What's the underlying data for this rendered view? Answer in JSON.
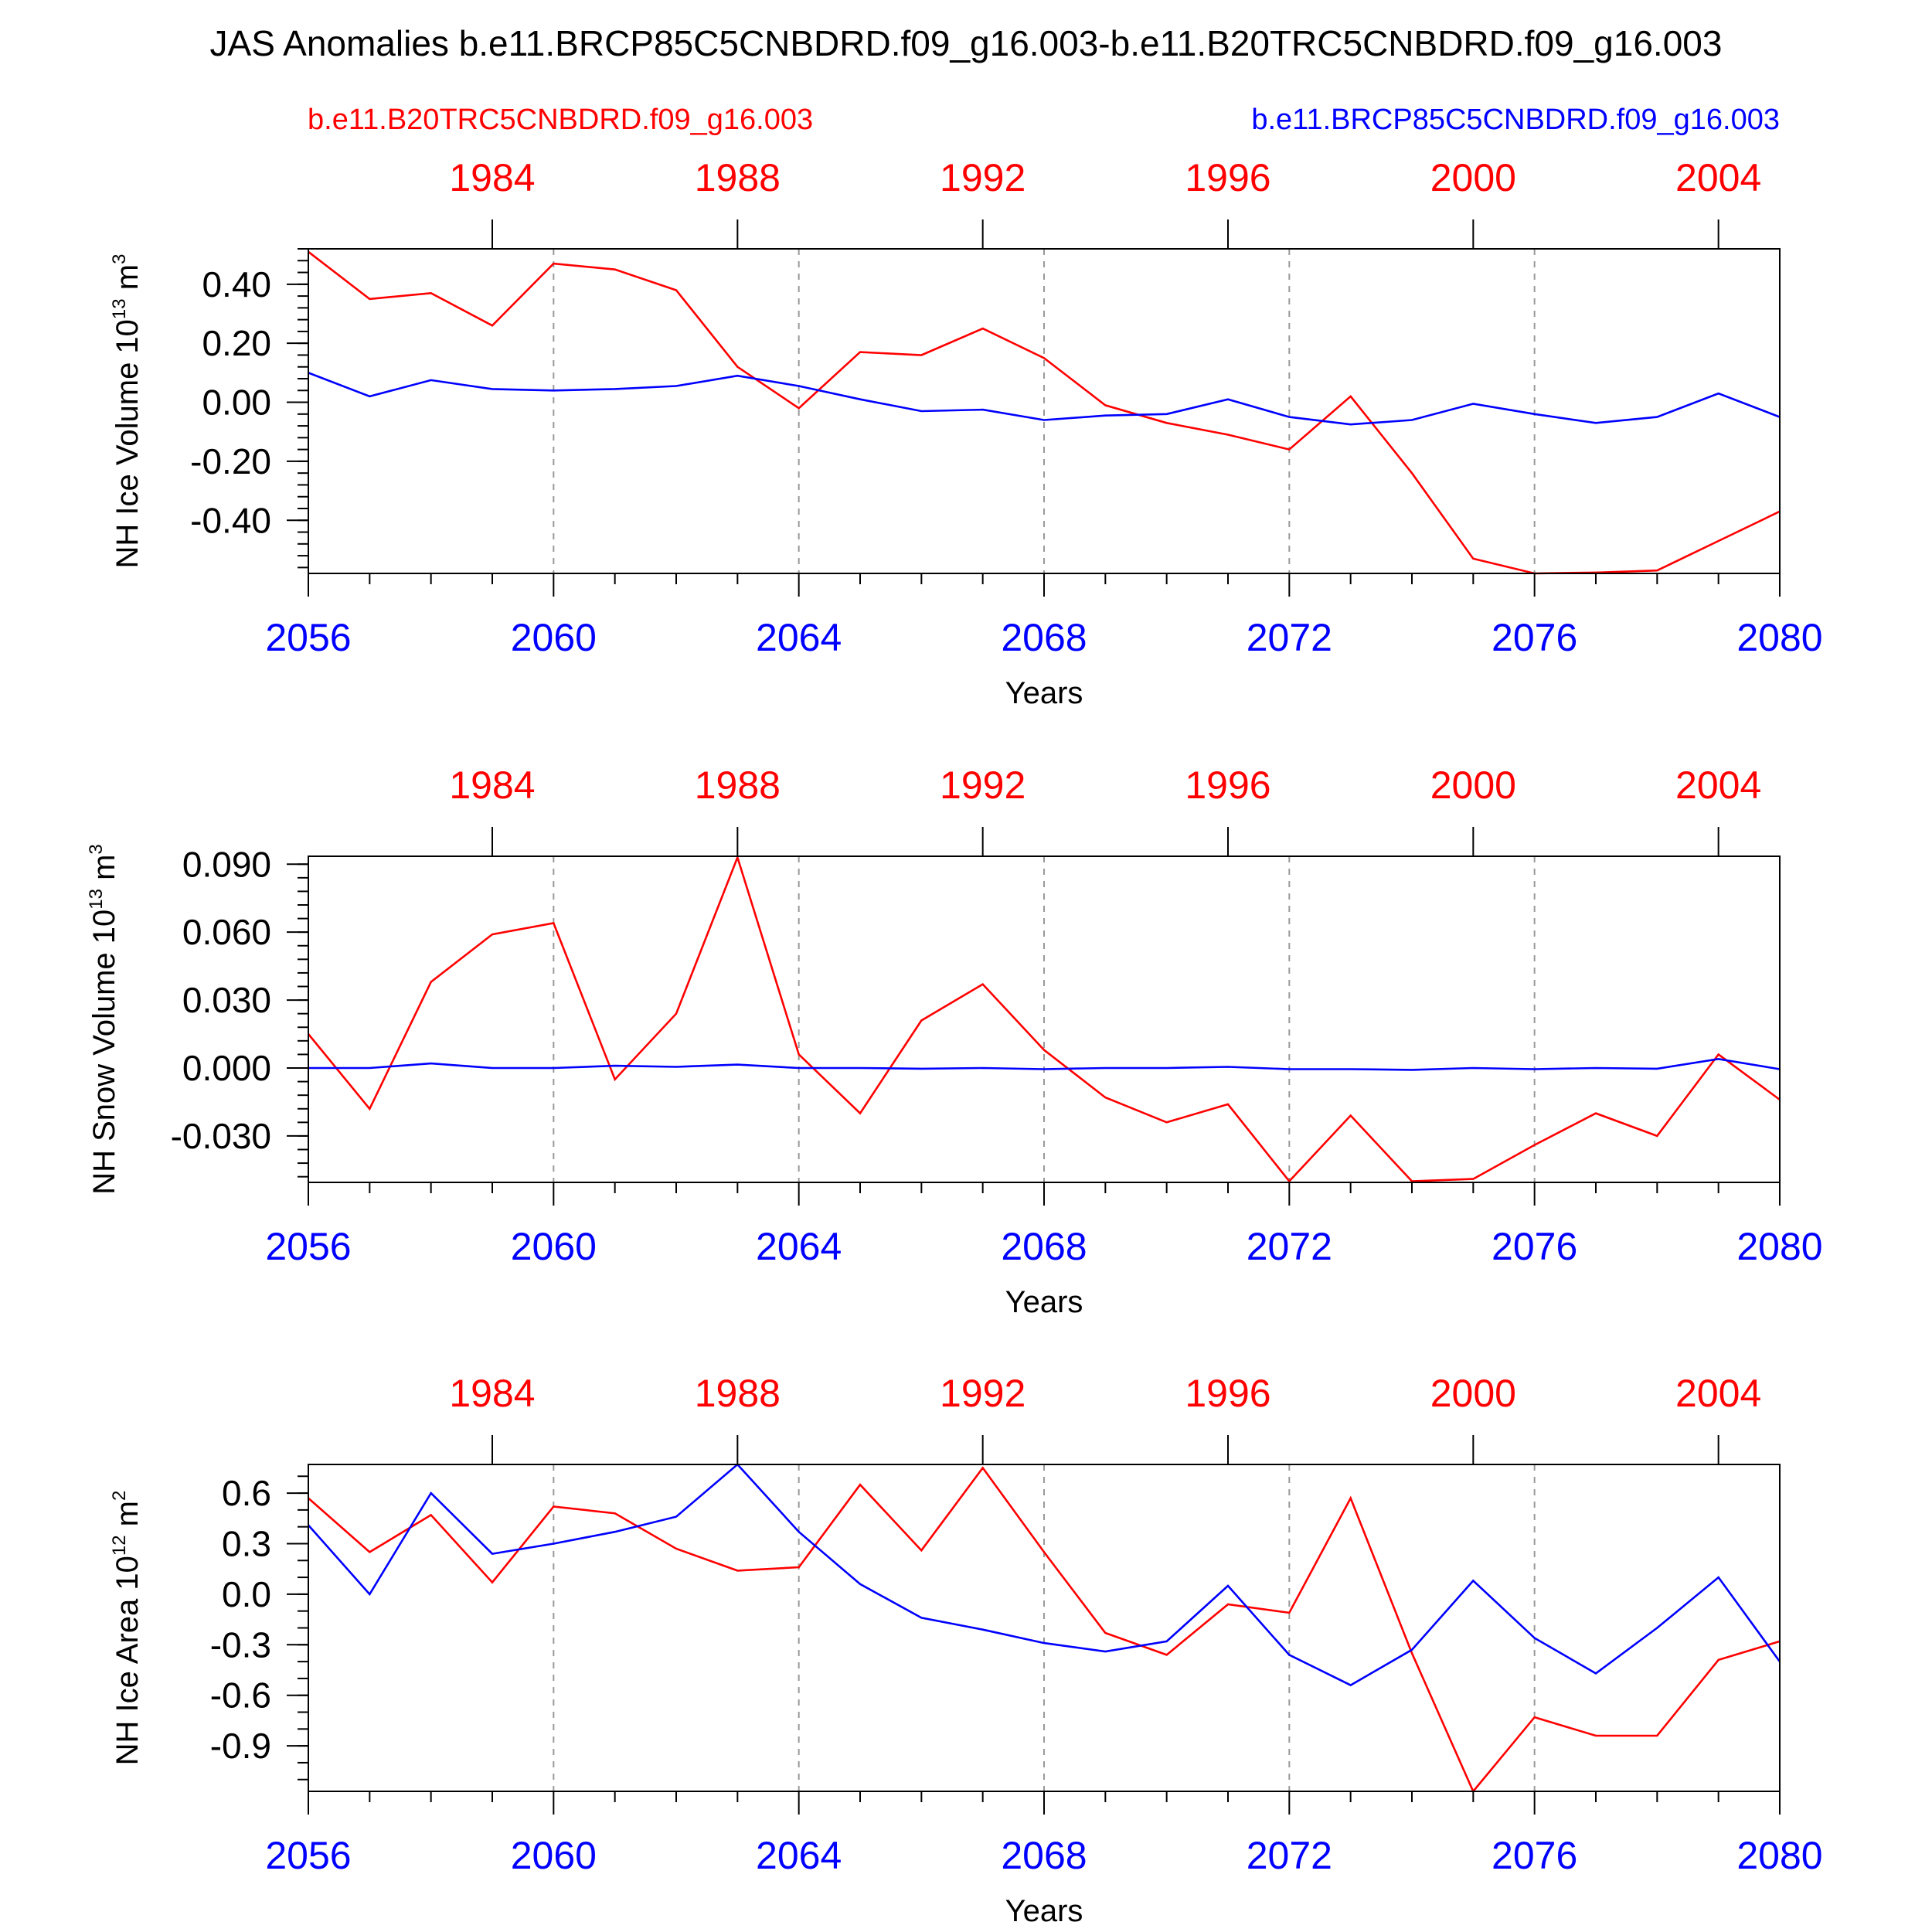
{
  "title": "JAS Anomalies b.e11.BRCP85C5CNBDRD.f09_g16.003-b.e11.B20TRC5CNBDRD.f09_g16.003",
  "legend": {
    "left": {
      "text": "b.e11.B20TRC5CNBDRD.f09_g16.003",
      "color": "#ff0000"
    },
    "right": {
      "text": "b.e11.BRCP85C5CNBDRD.f09_g16.003",
      "color": "#0000ff"
    }
  },
  "colors": {
    "red": "#ff0000",
    "blue": "#0000ff",
    "axis": "#000000",
    "grid": "#999999"
  },
  "chart_data": [
    {
      "type": "line",
      "ylabel": "NH Ice Volume 10",
      "ylabel_exp": "13",
      "ylabel_unit": "m",
      "ylabel_unit_exp": "3",
      "xlabel": "Years",
      "xlim": [
        2056,
        2080
      ],
      "ylim": [
        -0.58,
        0.52
      ],
      "yticks": [
        0.4,
        0.2,
        0.0,
        -0.2,
        -0.4
      ],
      "ytick_labels": [
        "0.40",
        "0.20",
        "0.00",
        "-0.20",
        "-0.40"
      ],
      "yminor_step": 0.04,
      "xticks_bottom": [
        2056,
        2060,
        2064,
        2068,
        2072,
        2076,
        2080
      ],
      "xticks_bottom_labels": [
        "2056",
        "2060",
        "2064",
        "2068",
        "2072",
        "2076",
        "2080"
      ],
      "xticks_top": [
        2059,
        2063,
        2067,
        2071,
        2075,
        2079
      ],
      "xticks_top_labels": [
        "1984",
        "1988",
        "1992",
        "1996",
        "2000",
        "2004"
      ],
      "grid_x": [
        2060,
        2064,
        2068,
        2072,
        2076
      ],
      "x": [
        2056,
        2057,
        2058,
        2059,
        2060,
        2061,
        2062,
        2063,
        2064,
        2065,
        2066,
        2067,
        2068,
        2069,
        2070,
        2071,
        2072,
        2073,
        2074,
        2075,
        2076,
        2077,
        2078,
        2079,
        2080
      ],
      "series": [
        {
          "name": "b.e11.B20TRC5CNBDRD.f09_g16.003",
          "color": "#ff0000",
          "values": [
            0.51,
            0.35,
            0.37,
            0.26,
            0.47,
            0.45,
            0.38,
            0.12,
            -0.02,
            0.17,
            0.16,
            0.25,
            0.15,
            -0.01,
            -0.07,
            -0.11,
            -0.16,
            0.02,
            -0.24,
            -0.53,
            -0.58,
            -0.577,
            -0.57,
            -0.47,
            -0.37
          ]
        },
        {
          "name": "b.e11.BRCP85C5CNBDRD.f09_g16.003",
          "color": "#0000ff",
          "values": [
            0.1,
            0.02,
            0.075,
            0.045,
            0.04,
            0.045,
            0.055,
            0.09,
            0.055,
            0.01,
            -0.03,
            -0.025,
            -0.06,
            -0.045,
            -0.04,
            0.01,
            -0.05,
            -0.075,
            -0.06,
            -0.005,
            -0.04,
            -0.07,
            -0.05,
            0.03,
            -0.05
          ]
        }
      ]
    },
    {
      "type": "line",
      "ylabel": "NH Snow Volume 10",
      "ylabel_exp": "13",
      "ylabel_unit": "m",
      "ylabel_unit_exp": "3",
      "xlabel": "Years",
      "xlim": [
        2056,
        2080
      ],
      "ylim": [
        -0.0505,
        0.0935
      ],
      "yticks": [
        0.09,
        0.06,
        0.03,
        0.0,
        -0.03
      ],
      "ytick_labels": [
        "0.090",
        "0.060",
        "0.030",
        "0.000",
        "-0.030"
      ],
      "yminor_step": 0.006,
      "xticks_bottom": [
        2056,
        2060,
        2064,
        2068,
        2072,
        2076,
        2080
      ],
      "xticks_bottom_labels": [
        "2056",
        "2060",
        "2064",
        "2068",
        "2072",
        "2076",
        "2080"
      ],
      "xticks_top": [
        2059,
        2063,
        2067,
        2071,
        2075,
        2079
      ],
      "xticks_top_labels": [
        "1984",
        "1988",
        "1992",
        "1996",
        "2000",
        "2004"
      ],
      "grid_x": [
        2060,
        2064,
        2068,
        2072,
        2076
      ],
      "x": [
        2056,
        2057,
        2058,
        2059,
        2060,
        2061,
        2062,
        2063,
        2064,
        2065,
        2066,
        2067,
        2068,
        2069,
        2070,
        2071,
        2072,
        2073,
        2074,
        2075,
        2076,
        2077,
        2078,
        2079,
        2080
      ],
      "series": [
        {
          "name": "b.e11.B20TRC5CNBDRD.f09_g16.003",
          "color": "#ff0000",
          "values": [
            0.015,
            -0.018,
            0.038,
            0.059,
            0.064,
            -0.005,
            0.024,
            0.093,
            0.006,
            -0.02,
            0.021,
            0.037,
            0.008,
            -0.013,
            -0.024,
            -0.016,
            -0.05,
            -0.021,
            -0.05,
            -0.049,
            -0.034,
            -0.02,
            -0.03,
            0.006,
            -0.014
          ]
        },
        {
          "name": "b.e11.BRCP85C5CNBDRD.f09_g16.003",
          "color": "#0000ff",
          "values": [
            0.0,
            0.0,
            0.002,
            0.0,
            0.0,
            0.001,
            0.0005,
            0.0015,
            0.0,
            0.0,
            -0.0003,
            0.0,
            -0.0005,
            0.0,
            0.0,
            0.0005,
            -0.0005,
            -0.0005,
            -0.0008,
            0.0,
            -0.0005,
            0.0,
            -0.0003,
            0.004,
            -0.0005
          ]
        }
      ]
    },
    {
      "type": "line",
      "ylabel": "NH Ice Area 10",
      "ylabel_exp": "12",
      "ylabel_unit": "m",
      "ylabel_unit_exp": "2",
      "xlabel": "Years",
      "xlim": [
        2056,
        2080
      ],
      "ylim": [
        -1.17,
        0.77
      ],
      "yticks": [
        0.6,
        0.3,
        0.0,
        -0.3,
        -0.6,
        -0.9
      ],
      "ytick_labels": [
        "0.6",
        "0.3",
        "0.0",
        "-0.3",
        "-0.6",
        "-0.9"
      ],
      "yminor_step": 0.1,
      "xticks_bottom": [
        2056,
        2060,
        2064,
        2068,
        2072,
        2076,
        2080
      ],
      "xticks_bottom_labels": [
        "2056",
        "2060",
        "2064",
        "2068",
        "2072",
        "2076",
        "2080"
      ],
      "xticks_top": [
        2059,
        2063,
        2067,
        2071,
        2075,
        2079
      ],
      "xticks_top_labels": [
        "1984",
        "1988",
        "1992",
        "1996",
        "2000",
        "2004"
      ],
      "grid_x": [
        2060,
        2064,
        2068,
        2072,
        2076
      ],
      "x": [
        2056,
        2057,
        2058,
        2059,
        2060,
        2061,
        2062,
        2063,
        2064,
        2065,
        2066,
        2067,
        2068,
        2069,
        2070,
        2071,
        2072,
        2073,
        2074,
        2075,
        2076,
        2077,
        2078,
        2079,
        2080
      ],
      "series": [
        {
          "name": "b.e11.B20TRC5CNBDRD.f09_g16.003",
          "color": "#ff0000",
          "values": [
            0.57,
            0.25,
            0.47,
            0.07,
            0.52,
            0.48,
            0.27,
            0.14,
            0.16,
            0.65,
            0.26,
            0.75,
            0.25,
            -0.23,
            -0.36,
            -0.06,
            -0.11,
            0.57,
            -0.35,
            -1.17,
            -0.73,
            -0.84,
            -0.84,
            -0.39,
            -0.28
          ]
        },
        {
          "name": "b.e11.BRCP85C5CNBDRD.f09_g16.003",
          "color": "#0000ff",
          "values": [
            0.41,
            0.0,
            0.6,
            0.24,
            0.3,
            0.37,
            0.46,
            0.77,
            0.37,
            0.06,
            -0.14,
            -0.21,
            -0.29,
            -0.34,
            -0.28,
            0.05,
            -0.36,
            -0.54,
            -0.33,
            0.08,
            -0.26,
            -0.47,
            -0.2,
            0.1,
            -0.4
          ]
        }
      ]
    }
  ]
}
